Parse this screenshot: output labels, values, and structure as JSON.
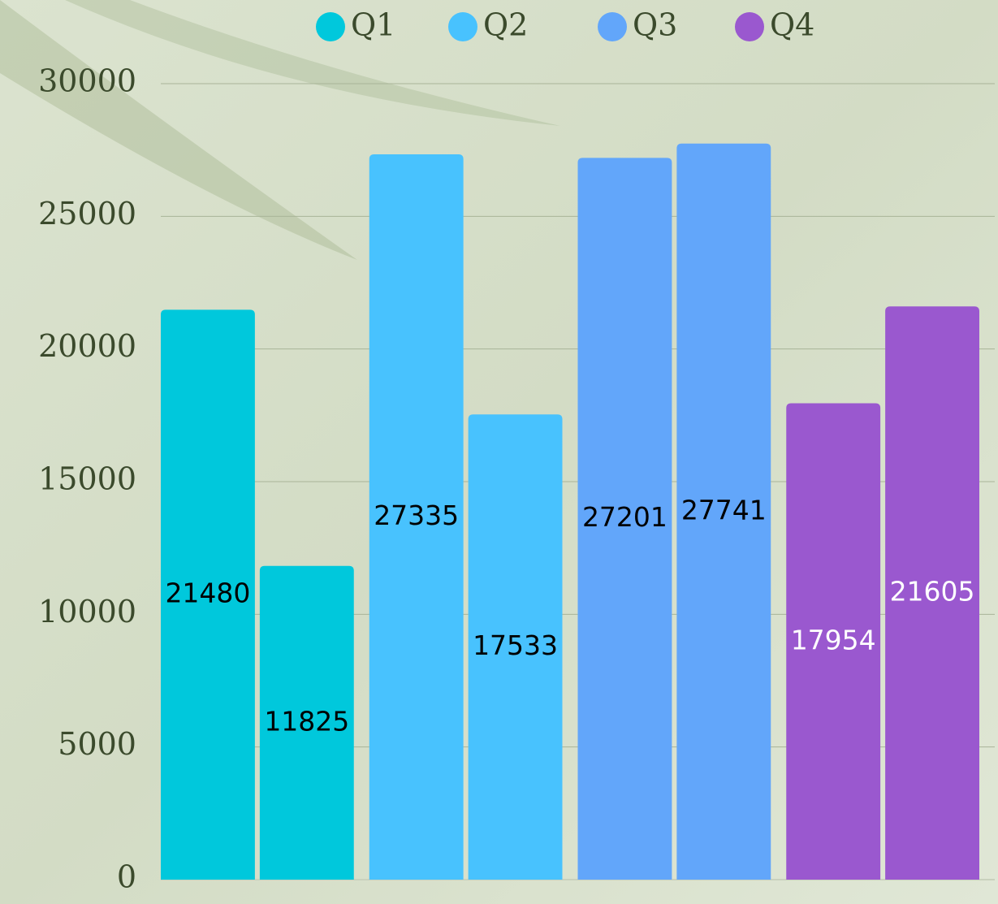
{
  "chart_data": {
    "type": "bar",
    "categories": [
      null,
      null
    ],
    "series": [
      {
        "name": "Q1",
        "color": "#00c8dc",
        "label_color": "#000000",
        "values": [
          21480,
          11825
        ]
      },
      {
        "name": "Q2",
        "color": "#48c2fe",
        "label_color": "#000000",
        "values": [
          27335,
          17533
        ]
      },
      {
        "name": "Q3",
        "color": "#62a6fa",
        "label_color": "#000000",
        "values": [
          27201,
          27741
        ]
      },
      {
        "name": "Q4",
        "color": "#9a58cf",
        "label_color": "#ffffff",
        "values": [
          17954,
          21605
        ]
      }
    ],
    "ylim": [
      0,
      30000
    ],
    "yticks": [
      0,
      5000,
      10000,
      15000,
      20000,
      25000,
      30000
    ],
    "grid": true,
    "legend": "top"
  }
}
